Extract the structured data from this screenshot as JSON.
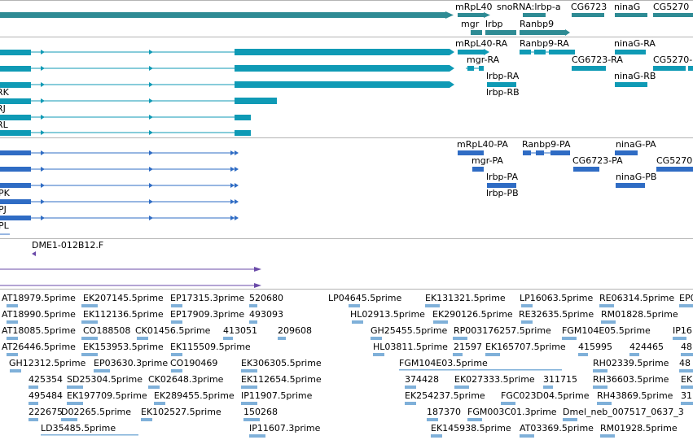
{
  "colors": {
    "gene": "#2e8b94",
    "mrna": "#0f9ab5",
    "protein": "#2f6cc4",
    "clone": "#6a4aa8",
    "est": "#7fb0d9",
    "divider": "#b4b4b4"
  },
  "gene_track": {
    "labels": [
      {
        "text": "mRpL40"
      },
      {
        "text": "snoRNA:lrbp-a"
      },
      {
        "text": "CG6723"
      },
      {
        "text": "ninaG"
      },
      {
        "text": "CG5270"
      },
      {
        "text": "mgr"
      },
      {
        "text": "lrbp"
      },
      {
        "text": "Ranbp9"
      }
    ]
  },
  "mrna_track": {
    "labels": [
      {
        "text": "mRpL40-RA"
      },
      {
        "text": "Ranbp9-RA"
      },
      {
        "text": "ninaG-RA"
      },
      {
        "text": "mgr-RA"
      },
      {
        "text": "CG6723-RA"
      },
      {
        "text": "CG5270-"
      },
      {
        "text": "lrbp-RA"
      },
      {
        "text": "ninaG-RB"
      },
      {
        "text": "lrbp-RB"
      },
      {
        "text": "RK"
      },
      {
        "text": "RJ"
      },
      {
        "text": "RL"
      }
    ]
  },
  "protein_track": {
    "labels": [
      {
        "text": "mRpL40-PA"
      },
      {
        "text": "Ranbp9-PA"
      },
      {
        "text": "ninaG-PA"
      },
      {
        "text": "mgr-PA"
      },
      {
        "text": "CG6723-PA"
      },
      {
        "text": "CG5270"
      },
      {
        "text": "lrbp-PA"
      },
      {
        "text": "ninaG-PB"
      },
      {
        "text": "lrbp-PB"
      },
      {
        "text": "PK"
      },
      {
        "text": "PJ"
      },
      {
        "text": "PL"
      }
    ]
  },
  "clone_track": {
    "labels": [
      {
        "text": "DME1-012B12.F"
      }
    ]
  },
  "est_track": {
    "labels": [
      {
        "text": "AT18979.5prime"
      },
      {
        "text": "EK207145.5prime"
      },
      {
        "text": "EP17315.3prime"
      },
      {
        "text": "520680"
      },
      {
        "text": "LP04645.5prime"
      },
      {
        "text": "EK131321.5prime"
      },
      {
        "text": "LP16063.5prime"
      },
      {
        "text": "RE06314.5prime"
      },
      {
        "text": "EP0"
      },
      {
        "text": "AT18990.5prime"
      },
      {
        "text": "EK112136.5prime"
      },
      {
        "text": "EP17909.3prime"
      },
      {
        "text": "493093"
      },
      {
        "text": "HL02913.5prime"
      },
      {
        "text": "EK290126.5prime"
      },
      {
        "text": "RE32635.5prime"
      },
      {
        "text": "RM01828.5prime"
      },
      {
        "text": "AT18085.5prime"
      },
      {
        "text": "CO188508"
      },
      {
        "text": "CK01456.5prime"
      },
      {
        "text": "413051"
      },
      {
        "text": "209608"
      },
      {
        "text": "GH25455.5prime"
      },
      {
        "text": "RP003176257.5prime"
      },
      {
        "text": "FGM104E05.5prime"
      },
      {
        "text": "IP16"
      },
      {
        "text": "AT26446.5prime"
      },
      {
        "text": "EK153953.5prime"
      },
      {
        "text": "EK115509.5prime"
      },
      {
        "text": "HL03811.5prime"
      },
      {
        "text": "21597"
      },
      {
        "text": "EK165707.5prime"
      },
      {
        "text": "415995"
      },
      {
        "text": "424465"
      },
      {
        "text": "48"
      },
      {
        "text": "GH12312.5prime"
      },
      {
        "text": "EP03630.3prime"
      },
      {
        "text": "CO190469"
      },
      {
        "text": "EK306305.5prime"
      },
      {
        "text": "FGM104E03.5prime"
      },
      {
        "text": "RH02339.5prime"
      },
      {
        "text": "48"
      },
      {
        "text": "425354"
      },
      {
        "text": "SD25304.5prime"
      },
      {
        "text": "CK02648.3prime"
      },
      {
        "text": "EK112654.5prime"
      },
      {
        "text": "374428"
      },
      {
        "text": "EK027333.5prime"
      },
      {
        "text": "311715"
      },
      {
        "text": "RH36603.5prime"
      },
      {
        "text": "EK"
      },
      {
        "text": "495484"
      },
      {
        "text": "EK197709.5prime"
      },
      {
        "text": "EK289455.5prime"
      },
      {
        "text": "IP11907.5prime"
      },
      {
        "text": "EK254237.5prime"
      },
      {
        "text": "FGC023D04.5prime"
      },
      {
        "text": "RH43869.5prime"
      },
      {
        "text": "31"
      },
      {
        "text": "222675"
      },
      {
        "text": "D02265.5prime"
      },
      {
        "text": "EK102527.5prime"
      },
      {
        "text": "150268"
      },
      {
        "text": "187370"
      },
      {
        "text": "FGM003C01.3prime"
      },
      {
        "text": "Dmel_neb_007517_0637_3"
      },
      {
        "text": "LD35485.5prime"
      },
      {
        "text": "IP11607.3prime"
      },
      {
        "text": "EK145938.5prime"
      },
      {
        "text": "AT03369.5prime"
      },
      {
        "text": "RM01928.5prime"
      }
    ]
  }
}
